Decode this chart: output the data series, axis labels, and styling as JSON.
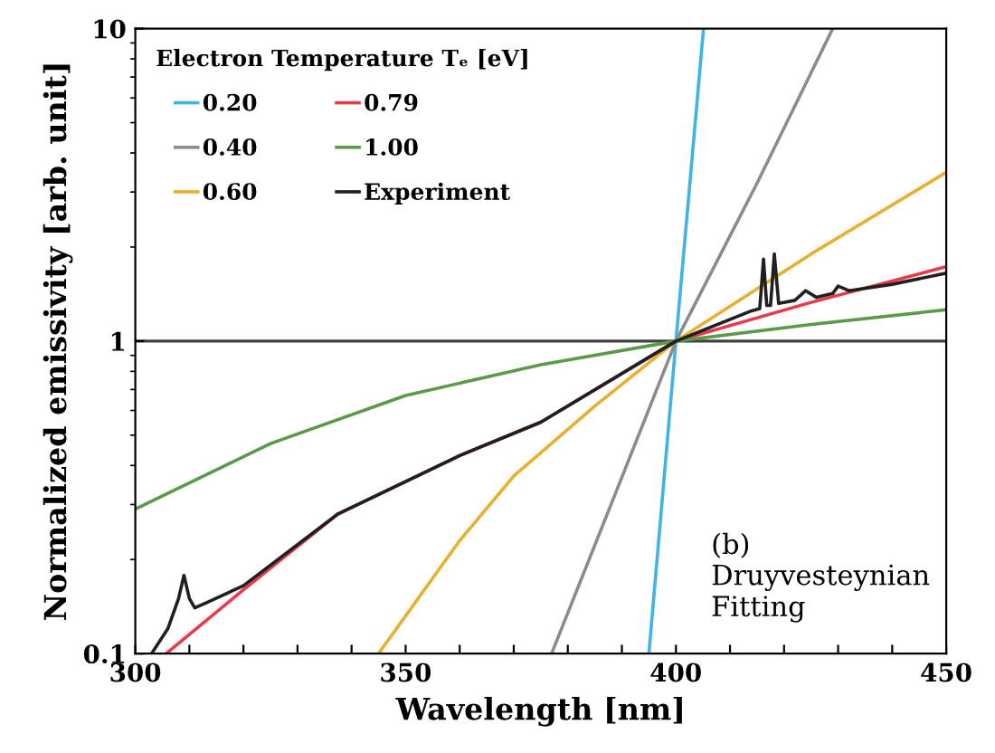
{
  "chart_data": {
    "type": "line",
    "xlabel": "Wavelength [nm]",
    "ylabel": "Normalized emissivity [arb. unit]",
    "legend_title": "Electron Temperature Tₑ [eV]",
    "log": "y",
    "xlim": [
      300,
      450
    ],
    "ylim": [
      0.1,
      10
    ],
    "xticks": [
      300,
      {
        "value": 310,
        "label": null
      },
      {
        "value": 320,
        "label": null
      },
      {
        "value": 330,
        "label": null
      },
      {
        "value": 340,
        "label": null
      },
      350,
      {
        "value": 360,
        "label": null
      },
      {
        "value": 370,
        "label": null
      },
      {
        "value": 380,
        "label": null
      },
      {
        "value": 390,
        "label": null
      },
      400,
      {
        "value": 410,
        "label": null
      },
      {
        "value": 420,
        "label": null
      },
      {
        "value": 430,
        "label": null
      },
      {
        "value": 440,
        "label": null
      },
      450
    ],
    "yticks": [
      0.1,
      1,
      10
    ],
    "grid": false,
    "legend": "top left",
    "line_style": "solid",
    "ref_lines": [
      {
        "axis": "y",
        "value": 1,
        "label": null,
        "color": "#404040"
      }
    ],
    "annotations": [
      "(b)\nDruyvesteynian\nFitting"
    ],
    "series": [
      {
        "name": "0.20",
        "color": "#3fb4e6",
        "x": [
          395,
          400,
          405.1
        ],
        "values": [
          0.1,
          1,
          10
        ]
      },
      {
        "name": "0.40",
        "color": "#8c8c8c",
        "x": [
          377,
          388,
          400,
          415,
          429
        ],
        "values": [
          0.1,
          0.3,
          1,
          3.2,
          10
        ]
      },
      {
        "name": "0.60",
        "color": "#e6b030",
        "x": [
          345,
          360,
          370,
          385,
          400,
          425,
          450
        ],
        "values": [
          0.1,
          0.23,
          0.37,
          0.62,
          1,
          1.9,
          3.47
        ]
      },
      {
        "name": "0.79",
        "color": "#e83a4a",
        "x": [
          305.7,
          320,
          337.5,
          360,
          375,
          400,
          425,
          450
        ],
        "values": [
          0.1,
          0.16,
          0.28,
          0.43,
          0.55,
          1,
          1.33,
          1.73
        ]
      },
      {
        "name": "1.00",
        "color": "#5a9a48",
        "x": [
          300,
          325,
          350,
          375,
          400,
          425,
          450
        ],
        "values": [
          0.29,
          0.47,
          0.67,
          0.84,
          1,
          1.13,
          1.26
        ]
      },
      {
        "name": "Experiment",
        "color": "#202020",
        "x": [
          303,
          306,
          308,
          309,
          310,
          311,
          313,
          320,
          337.5,
          360,
          375,
          400,
          414,
          415.5,
          416.2,
          416.8,
          417.5,
          418.2,
          419,
          422,
          424,
          426,
          429,
          430,
          432,
          440,
          450
        ],
        "values": [
          0.1,
          0.12,
          0.15,
          0.178,
          0.15,
          0.14,
          0.145,
          0.165,
          0.28,
          0.43,
          0.55,
          1,
          1.25,
          1.27,
          1.83,
          1.3,
          1.3,
          1.9,
          1.32,
          1.35,
          1.45,
          1.38,
          1.42,
          1.5,
          1.45,
          1.52,
          1.65
        ]
      }
    ]
  }
}
